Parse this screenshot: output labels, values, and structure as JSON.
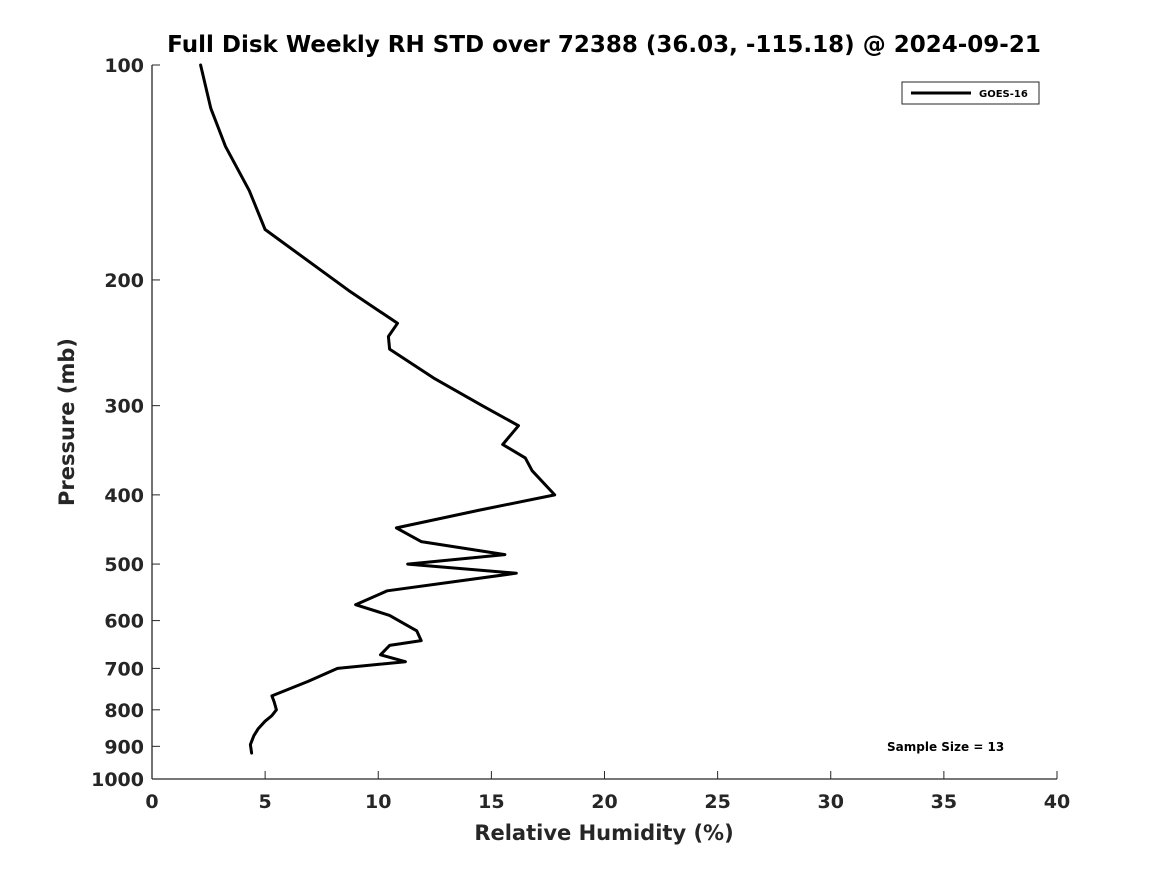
{
  "chart_data": {
    "type": "line",
    "title": "Full Disk Weekly RH STD over 72388 (36.03, -115.18) @ 2024-09-21",
    "xlabel": "Relative Humidity (%)",
    "ylabel": "Pressure (mb)",
    "xlim": [
      0,
      40
    ],
    "ylim": [
      100,
      1000
    ],
    "yscale": "log",
    "yreversed": true,
    "xticks": [
      0,
      5,
      10,
      15,
      20,
      25,
      30,
      35,
      40
    ],
    "yticks": [
      100,
      200,
      300,
      400,
      500,
      600,
      700,
      800,
      900,
      1000
    ],
    "grid": false,
    "legend_position": "top-right",
    "series": [
      {
        "name": "GOES-16",
        "color": "#000000",
        "x": [
          2.15,
          2.6,
          3.25,
          4.3,
          5.0,
          8.7,
          10.85,
          10.45,
          10.5,
          12.5,
          14.6,
          16.2,
          15.5,
          16.5,
          16.8,
          17.8,
          14.5,
          10.8,
          11.9,
          15.6,
          11.3,
          16.1,
          10.4,
          9.0,
          10.5,
          11.7,
          11.9,
          10.5,
          10.1,
          11.2,
          8.2,
          6.9,
          5.3,
          5.4,
          5.5,
          5.3,
          5.0,
          4.7,
          4.5,
          4.35,
          4.4
        ],
        "y": [
          100,
          115,
          130,
          150,
          170,
          207,
          230,
          240,
          250,
          275,
          300,
          320,
          340,
          355,
          370,
          400,
          420,
          445,
          465,
          485,
          500,
          515,
          545,
          570,
          590,
          620,
          640,
          650,
          670,
          685,
          700,
          730,
          765,
          780,
          800,
          815,
          830,
          850,
          870,
          895,
          920
        ]
      }
    ],
    "annotations": [
      "Sample Size = 13"
    ]
  }
}
